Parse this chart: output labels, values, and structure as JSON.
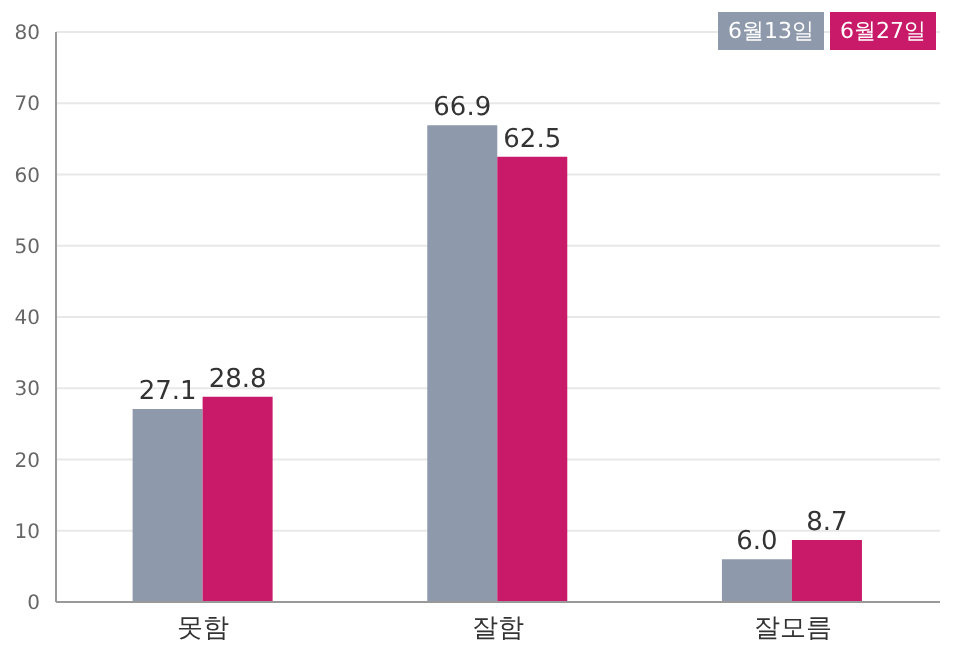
{
  "chart_data": {
    "type": "bar",
    "categories": [
      "못함",
      "잘함",
      "잘모름"
    ],
    "series": [
      {
        "name": "6월13일",
        "color": "#8e99ab",
        "values": [
          27.1,
          66.9,
          6.0
        ],
        "value_labels": [
          "27.1",
          "66.9",
          "6.0"
        ]
      },
      {
        "name": "6월27일",
        "color": "#c81a68",
        "values": [
          28.8,
          62.5,
          8.7
        ],
        "value_labels": [
          "28.8",
          "62.5",
          "8.7"
        ]
      }
    ],
    "ylim": [
      0,
      80
    ],
    "yticks": [
      0,
      10,
      20,
      30,
      40,
      50,
      60,
      70,
      80
    ],
    "grid": "y",
    "legend": "top right"
  }
}
